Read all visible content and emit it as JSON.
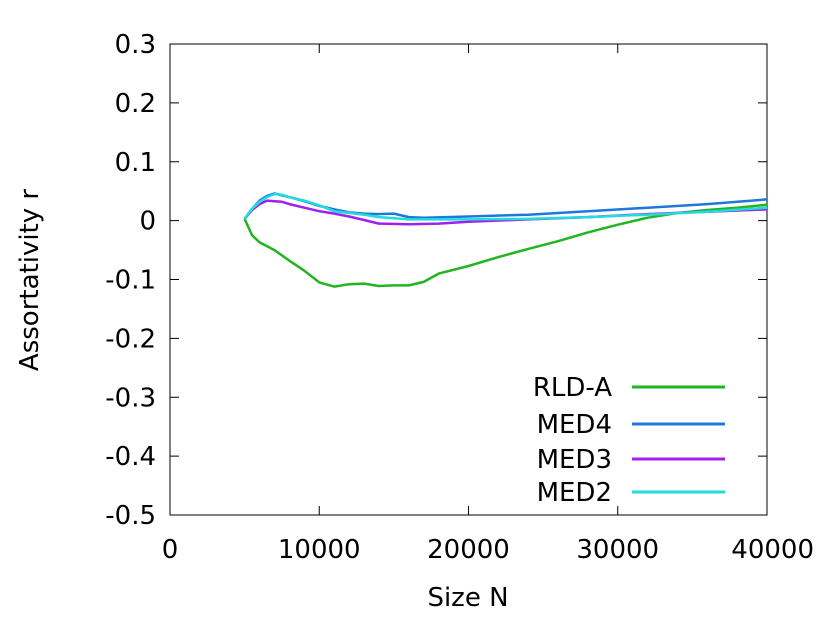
{
  "chart_data": {
    "type": "line",
    "title": "",
    "xlabel": "Size N",
    "ylabel": "Assortativity r",
    "xlim": [
      0,
      40000
    ],
    "ylim": [
      -0.5,
      0.3
    ],
    "xticks": [
      0,
      10000,
      20000,
      30000,
      40000
    ],
    "xtick_labels": [
      "0",
      "10000",
      "20000",
      "30000",
      "40000"
    ],
    "yticks": [
      0.3,
      0.2,
      0.1,
      0,
      -0.1,
      -0.2,
      -0.3,
      -0.4,
      -0.5
    ],
    "ytick_labels": [
      "0.3",
      "0.2",
      "0.1",
      "0",
      "-0.1",
      "-0.2",
      "-0.3",
      "-0.4",
      "-0.5"
    ],
    "grid": false,
    "legend_position": "bottom-right",
    "series": [
      {
        "name": "RLD-A",
        "color": "#22b422",
        "points": [
          [
            5000,
            0.003
          ],
          [
            5500,
            -0.025
          ],
          [
            6000,
            -0.037
          ],
          [
            7000,
            -0.05
          ],
          [
            8000,
            -0.068
          ],
          [
            9000,
            -0.085
          ],
          [
            10000,
            -0.105
          ],
          [
            11000,
            -0.112
          ],
          [
            12000,
            -0.108
          ],
          [
            13000,
            -0.107
          ],
          [
            14000,
            -0.111
          ],
          [
            15000,
            -0.11
          ],
          [
            16000,
            -0.11
          ],
          [
            17000,
            -0.104
          ],
          [
            18000,
            -0.09
          ],
          [
            20000,
            -0.077
          ],
          [
            22000,
            -0.062
          ],
          [
            24000,
            -0.048
          ],
          [
            26000,
            -0.035
          ],
          [
            28000,
            -0.02
          ],
          [
            30000,
            -0.007
          ],
          [
            32000,
            0.005
          ],
          [
            34000,
            0.013
          ],
          [
            36000,
            0.018
          ],
          [
            38000,
            0.022
          ],
          [
            40000,
            0.027
          ]
        ]
      },
      {
        "name": "MED4",
        "color": "#1e78dc",
        "points": [
          [
            5000,
            0.003
          ],
          [
            5500,
            0.02
          ],
          [
            6000,
            0.034
          ],
          [
            6500,
            0.042
          ],
          [
            7000,
            0.046
          ],
          [
            8000,
            0.04
          ],
          [
            9000,
            0.033
          ],
          [
            10000,
            0.025
          ],
          [
            11000,
            0.019
          ],
          [
            12000,
            0.014
          ],
          [
            13000,
            0.012
          ],
          [
            14000,
            0.011
          ],
          [
            15000,
            0.012
          ],
          [
            16000,
            0.006
          ],
          [
            17000,
            0.005
          ],
          [
            20000,
            0.007
          ],
          [
            24000,
            0.01
          ],
          [
            28000,
            0.016
          ],
          [
            32000,
            0.022
          ],
          [
            36000,
            0.028
          ],
          [
            40000,
            0.036
          ]
        ]
      },
      {
        "name": "MED3",
        "color": "#a020f0",
        "points": [
          [
            5000,
            0.003
          ],
          [
            5500,
            0.018
          ],
          [
            6000,
            0.028
          ],
          [
            6500,
            0.034
          ],
          [
            7000,
            0.033
          ],
          [
            7500,
            0.032
          ],
          [
            8000,
            0.028
          ],
          [
            9000,
            0.022
          ],
          [
            10000,
            0.016
          ],
          [
            11000,
            0.012
          ],
          [
            12000,
            0.007
          ],
          [
            13000,
            0.001
          ],
          [
            14000,
            -0.005
          ],
          [
            16000,
            -0.006
          ],
          [
            18000,
            -0.005
          ],
          [
            20000,
            -0.002
          ],
          [
            24000,
            0.002
          ],
          [
            28000,
            0.006
          ],
          [
            32000,
            0.011
          ],
          [
            36000,
            0.015
          ],
          [
            40000,
            0.019
          ]
        ]
      },
      {
        "name": "MED2",
        "color": "#22dcdc",
        "points": [
          [
            5000,
            0.003
          ],
          [
            5500,
            0.02
          ],
          [
            6000,
            0.032
          ],
          [
            6500,
            0.04
          ],
          [
            7000,
            0.045
          ],
          [
            7500,
            0.044
          ],
          [
            8000,
            0.04
          ],
          [
            9000,
            0.034
          ],
          [
            10000,
            0.026
          ],
          [
            11000,
            0.016
          ],
          [
            12000,
            0.013
          ],
          [
            13000,
            0.01
          ],
          [
            14000,
            0.006
          ],
          [
            16000,
            0.002
          ],
          [
            18000,
            0.002
          ],
          [
            20000,
            0.002
          ],
          [
            24000,
            0.003
          ],
          [
            28000,
            0.006
          ],
          [
            32000,
            0.01
          ],
          [
            36000,
            0.015
          ],
          [
            40000,
            0.022
          ]
        ]
      }
    ]
  }
}
